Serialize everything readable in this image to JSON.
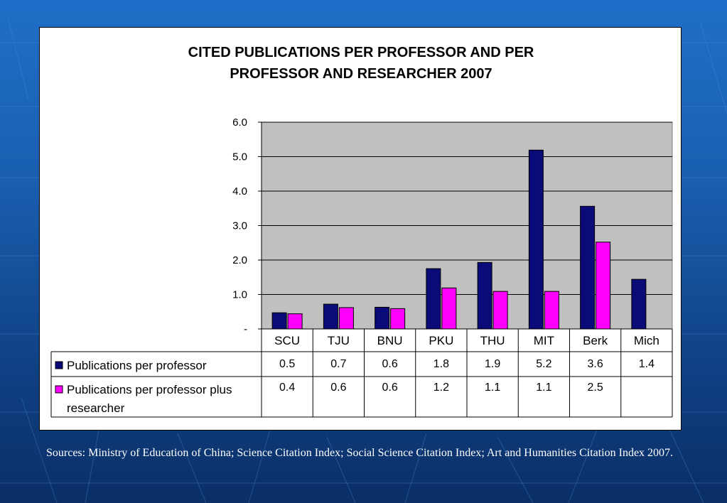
{
  "chart_data": {
    "type": "bar",
    "title_lines": [
      "CITED PUBLICATIONS PER PROFESSOR AND PER",
      "PROFESSOR AND RESEARCHER 2007"
    ],
    "categories": [
      "SCU",
      "TJU",
      "BNU",
      "PKU",
      "THU",
      "MIT",
      "Berk",
      "Mich"
    ],
    "series": [
      {
        "name": "Publications per professor",
        "values": [
          0.47,
          0.72,
          0.63,
          1.75,
          1.93,
          5.19,
          3.56,
          1.44
        ],
        "labels": [
          "0.5",
          "0.7",
          "0.6",
          "1.8",
          "1.9",
          "5.2",
          "3.6",
          "1.4"
        ],
        "color": "#0a0a78"
      },
      {
        "name_lines": [
          "Publications per professor plus",
          "researcher"
        ],
        "values": [
          0.44,
          0.62,
          0.59,
          1.19,
          1.09,
          1.09,
          2.52,
          null
        ],
        "labels": [
          "0.4",
          "0.6",
          "0.6",
          "1.2",
          "1.1",
          "1.1",
          "2.5",
          ""
        ],
        "color": "#ff00ff"
      }
    ],
    "yticks": [
      "-",
      "1.0",
      "2.0",
      "3.0",
      "4.0",
      "5.0",
      "6.0"
    ],
    "ylim": [
      0,
      6
    ],
    "plot_background": "#c0c0c0",
    "grid": true,
    "legend": "data-table"
  },
  "source_note": "Sources: Ministry of Education of China; Science Citation Index; Social Science Citation Index; Art and Humanities Citation Index 2007."
}
